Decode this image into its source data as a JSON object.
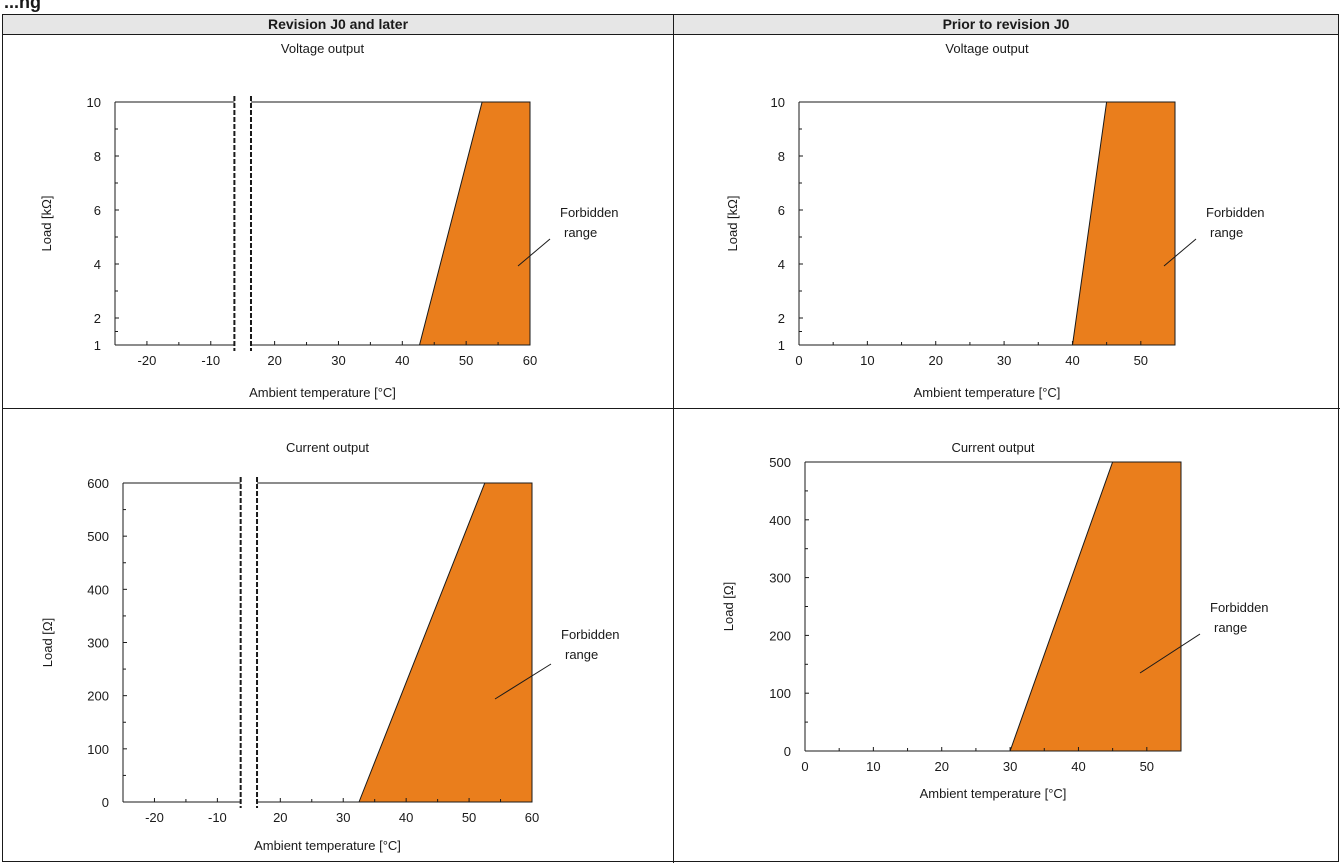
{
  "page": {
    "heading": "...ng"
  },
  "headers": {
    "left": "Revision J0 and later",
    "right": "Prior to revision J0"
  },
  "chart_data": [
    {
      "type": "area",
      "title": "Voltage output",
      "xlabel": "Ambient temperature [°C]",
      "ylabel": "Load [kΩ]",
      "xlim": [
        -25,
        60
      ],
      "ylim": [
        1,
        10
      ],
      "xticks": [
        -20,
        -10,
        20,
        30,
        40,
        50,
        60
      ],
      "yticks": [
        1,
        2,
        4,
        6,
        8,
        10
      ],
      "axis_break": {
        "from": -10,
        "to": 20
      },
      "region_label": "Forbidden range",
      "region": [
        [
          42.7,
          1
        ],
        [
          52.5,
          10
        ],
        [
          60,
          10
        ],
        [
          60,
          1
        ]
      ]
    },
    {
      "type": "area",
      "title": "Voltage output",
      "xlabel": "Ambient temperature [°C]",
      "ylabel": "Load [kΩ]",
      "xlim": [
        0,
        55
      ],
      "ylim": [
        1,
        10
      ],
      "xticks": [
        0,
        10,
        20,
        30,
        40,
        50
      ],
      "yticks": [
        1,
        2,
        4,
        6,
        8,
        10
      ],
      "region_label": "Forbidden range",
      "region": [
        [
          40,
          1
        ],
        [
          45,
          10
        ],
        [
          55,
          10
        ],
        [
          55,
          1
        ]
      ]
    },
    {
      "type": "area",
      "title": "Current output",
      "xlabel": "Ambient temperature [°C]",
      "ylabel": "Load [Ω]",
      "xlim": [
        -25,
        60
      ],
      "ylim": [
        0,
        600
      ],
      "xticks": [
        -20,
        -10,
        20,
        30,
        40,
        50,
        60
      ],
      "yticks": [
        0,
        100,
        200,
        300,
        400,
        500,
        600
      ],
      "axis_break": {
        "from": -10,
        "to": 20
      },
      "region_label": "Forbidden range",
      "region": [
        [
          32.5,
          0
        ],
        [
          52.5,
          600
        ],
        [
          60,
          600
        ],
        [
          60,
          0
        ]
      ]
    },
    {
      "type": "area",
      "title": "Current output",
      "xlabel": "Ambient temperature [°C]",
      "ylabel": "Load [Ω]",
      "xlim": [
        0,
        55
      ],
      "ylim": [
        0,
        500
      ],
      "xticks": [
        0,
        10,
        20,
        30,
        40,
        50
      ],
      "yticks": [
        0,
        100,
        200,
        300,
        400,
        500
      ],
      "region_label": "Forbidden range",
      "region": [
        [
          30,
          0
        ],
        [
          45,
          500
        ],
        [
          55,
          500
        ],
        [
          55,
          0
        ]
      ]
    }
  ],
  "colors": {
    "forbidden": "#ea7e1c",
    "line": "#1a1a1a"
  }
}
